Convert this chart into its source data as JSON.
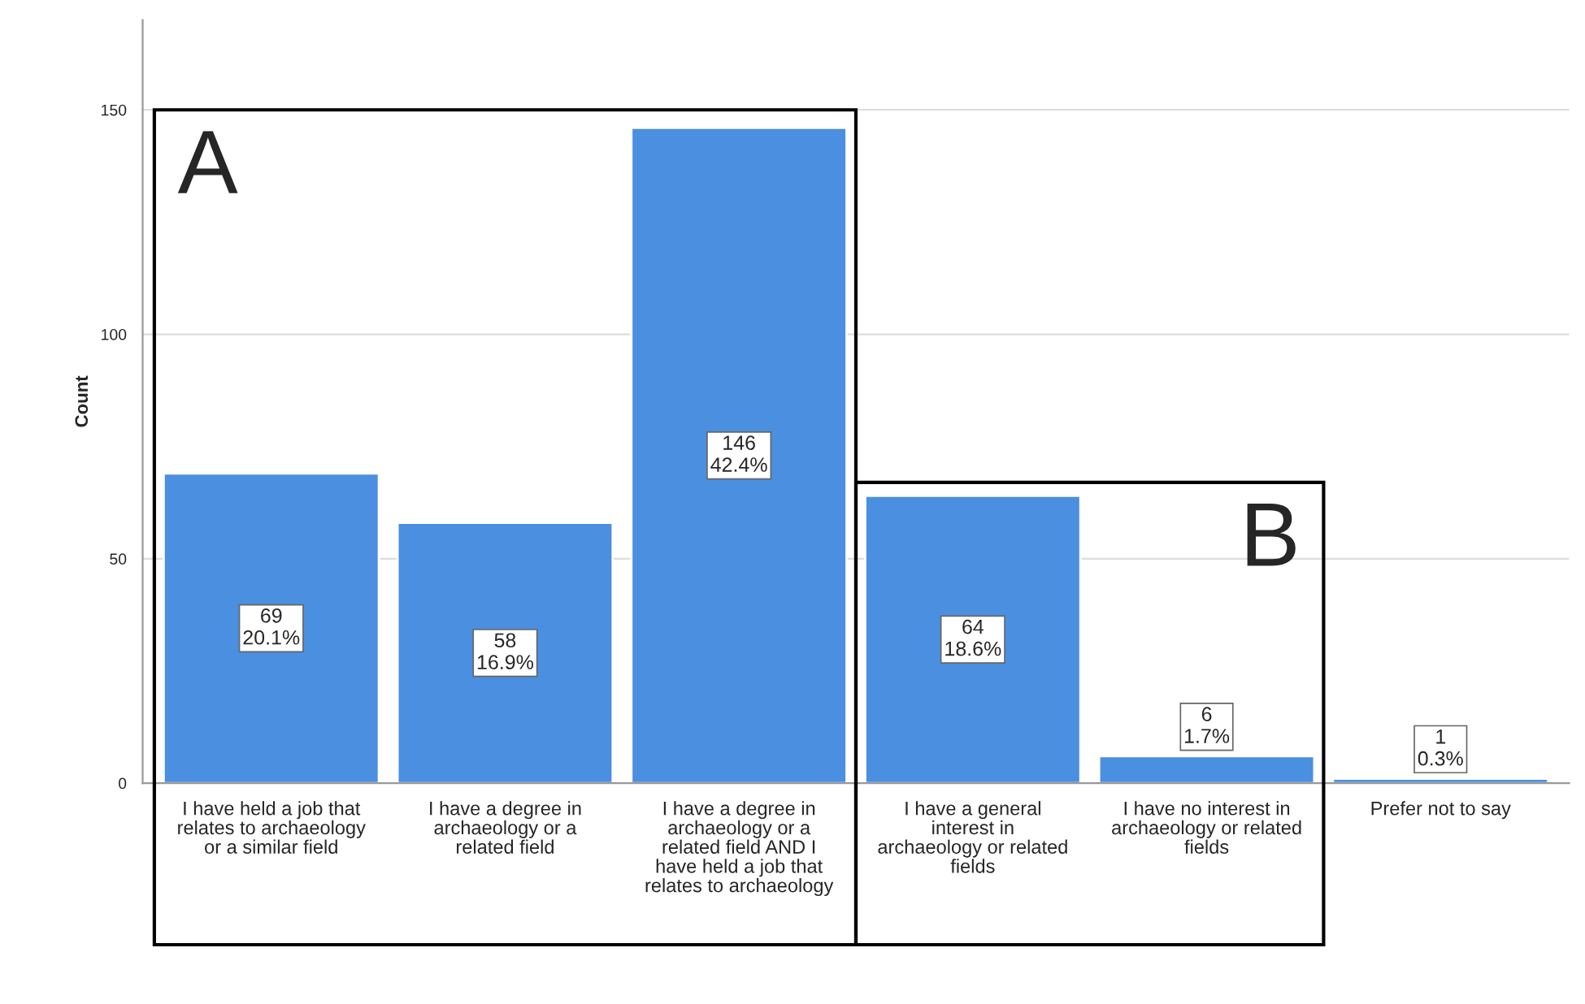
{
  "chart_data": {
    "type": "bar",
    "ylabel": "Count",
    "categories": [
      "I have held a job that\nrelates to archaeology\nor a similar field",
      "I have a degree in\narchaeology or a\nrelated field",
      "I have a degree in\narchaeology or a\nrelated field AND I\nhave held a job that\nrelates to archaeology",
      "I have a general\ninterest in\narchaeology or related\nfields",
      "I have no interest in\narchaeology or related\nfields",
      "Prefer not to say"
    ],
    "values": [
      69,
      58,
      146,
      64,
      6,
      1
    ],
    "value_labels": [
      "69\n20.1%",
      "58\n16.9%",
      "146\n42.4%",
      "64\n18.6%",
      "6\n1.7%",
      "1\n0.3%"
    ],
    "color": "#4a8fe0",
    "ylim": [
      0,
      170
    ],
    "yticks": [
      0,
      50,
      100,
      150
    ],
    "grid": "y",
    "legend": false,
    "annotations": [
      "A",
      "B"
    ]
  }
}
